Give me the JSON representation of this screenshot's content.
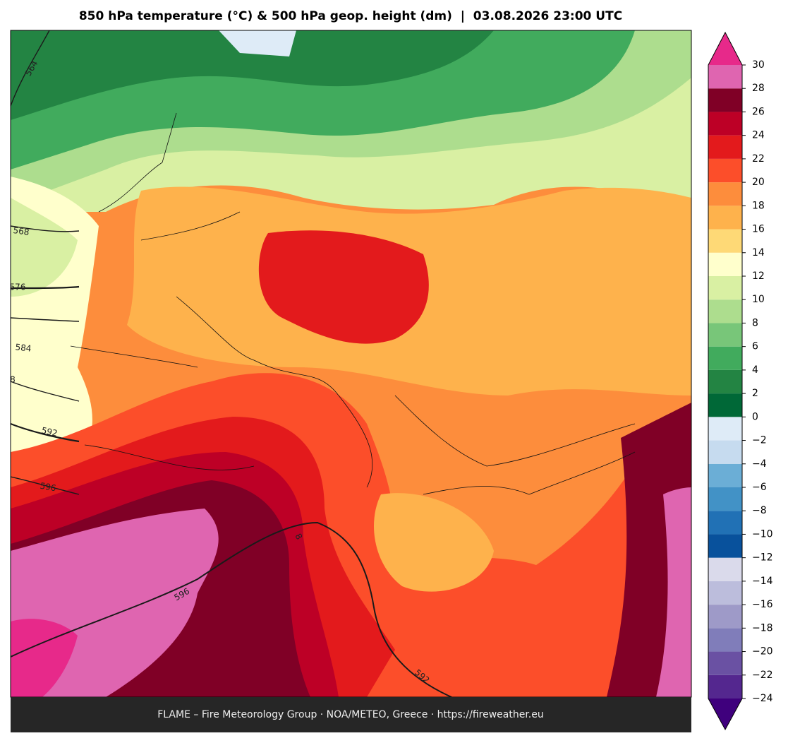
{
  "title": "850 hPa temperature (°C) & 500 hPa geop. height (dm)  |  03.08.2026 23:00 UTC",
  "map": {
    "contour_labels": [
      "564",
      "568",
      "576",
      "584",
      "8",
      "592",
      "596",
      "596",
      "592",
      "8"
    ]
  },
  "colorbar": {
    "ticks": [
      {
        "value": -24,
        "label": "−24"
      },
      {
        "value": -22,
        "label": "−22"
      },
      {
        "value": -20,
        "label": "−20"
      },
      {
        "value": -18,
        "label": "−18"
      },
      {
        "value": -16,
        "label": "−16"
      },
      {
        "value": -14,
        "label": "−14"
      },
      {
        "value": -12,
        "label": "−12"
      },
      {
        "value": -10,
        "label": "−10"
      },
      {
        "value": -8,
        "label": "−8"
      },
      {
        "value": -6,
        "label": "−6"
      },
      {
        "value": -4,
        "label": "−4"
      },
      {
        "value": -2,
        "label": "−2"
      },
      0,
      2,
      4,
      6,
      8,
      10,
      12,
      14,
      16,
      18,
      20,
      22,
      24,
      26,
      28,
      30
    ],
    "colors": [
      "#54278f",
      "#6a51a3",
      "#807dba",
      "#9e9ac8",
      "#bcbddc",
      "#dadaeb",
      "#08519c",
      "#2171b5",
      "#4292c6",
      "#6baed6",
      "#c6dbef",
      "#deebf7",
      "#006837",
      "#238443",
      "#41ab5d",
      "#78c679",
      "#addd8e",
      "#d9f0a3",
      "#ffffcc",
      "#fed976",
      "#feb24c",
      "#fd8d3c",
      "#fc4e2a",
      "#e31a1c",
      "#bd0026",
      "#800026",
      "#df65b0"
    ],
    "under_color": "#3f007d",
    "over_color": "#e7298a"
  },
  "footer": "FLAME – Fire Meteorology Group · NOA/METEO, Greece · https://fireweather.eu"
}
